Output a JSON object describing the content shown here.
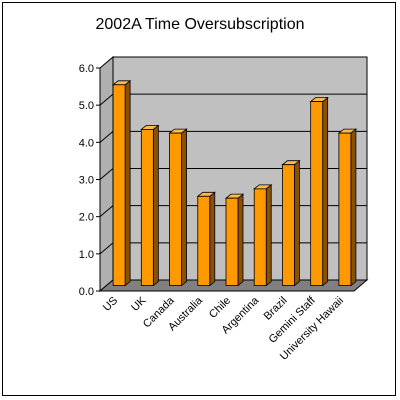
{
  "chart_data": {
    "type": "bar",
    "title": "2002A Time Oversubscription",
    "categories": [
      "US",
      "UK",
      "Canada",
      "Australia",
      "Chile",
      "Argentina",
      "Brazil",
      "Gemini Staff",
      "University Hawaii"
    ],
    "values": [
      5.4,
      4.2,
      4.1,
      2.4,
      2.35,
      2.6,
      3.25,
      4.95,
      4.1
    ],
    "ylim": [
      0,
      6
    ],
    "yticks": [
      "0.0",
      "1.0",
      "2.0",
      "3.0",
      "4.0",
      "5.0",
      "6.0"
    ],
    "grid": true,
    "legend": "none",
    "xlabel": "",
    "ylabel": "",
    "colors": {
      "bar_front": "#ff9900",
      "bar_side": "#8a5200",
      "bar_top": "#ffb84d",
      "plot_back": "#c0c0c0",
      "floor": "#808080"
    }
  }
}
